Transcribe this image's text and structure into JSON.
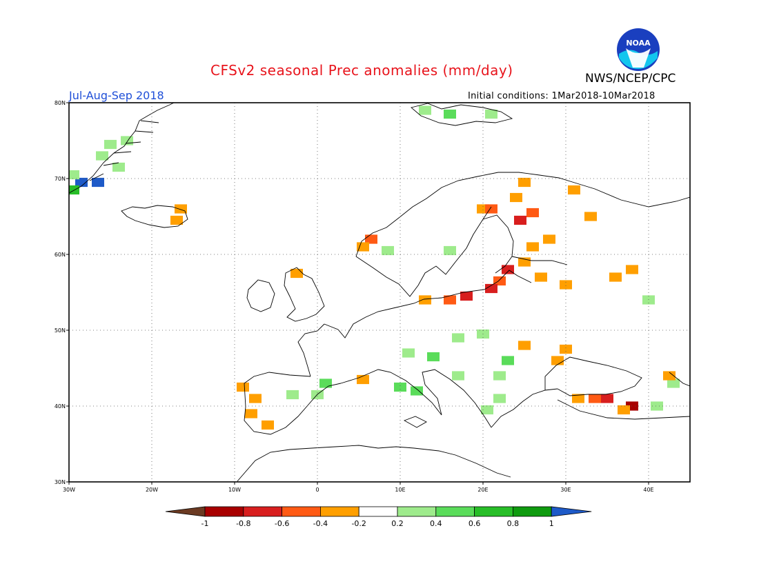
{
  "header": {
    "title": "CFSv2 seasonal Prec anomalies (mm/day)",
    "org": "NWS/NCEP/CPC",
    "period": "Jul-Aug-Sep 2018",
    "initial_conditions": "Initial conditions: 1Mar2018-10Mar2018",
    "logo_text": "NOAA"
  },
  "map": {
    "lon_range": [
      -30,
      45
    ],
    "lat_range": [
      30,
      80
    ],
    "x_ticks": [
      "30W",
      "20W",
      "10W",
      "0",
      "10E",
      "20E",
      "30E",
      "40E"
    ],
    "y_ticks": [
      "30N",
      "40N",
      "50N",
      "60N",
      "70N",
      "80N"
    ],
    "gridlines": "dotted",
    "anomaly_cells_mm_per_day": [
      {
        "lon": -24,
        "lat": 71.5,
        "value": 0.35
      },
      {
        "lon": -26,
        "lat": 73,
        "value": 0.3
      },
      {
        "lon": -25,
        "lat": 74.5,
        "value": 0.3
      },
      {
        "lon": -23,
        "lat": 75,
        "value": 0.3
      },
      {
        "lon": -28.5,
        "lat": 69.5,
        "value": 1.1
      },
      {
        "lon": -26.5,
        "lat": 69.5,
        "value": 1.1
      },
      {
        "lon": -29.5,
        "lat": 68.5,
        "value": 0.7
      },
      {
        "lon": -29.5,
        "lat": 70.5,
        "value": 0.3
      },
      {
        "lon": -16.5,
        "lat": 66,
        "value": -0.3
      },
      {
        "lon": -17,
        "lat": 64.5,
        "value": -0.3
      },
      {
        "lon": -2.5,
        "lat": 57.5,
        "value": -0.3
      },
      {
        "lon": 6.5,
        "lat": 62,
        "value": -0.6
      },
      {
        "lon": 5.5,
        "lat": 61,
        "value": -0.4
      },
      {
        "lon": 8.5,
        "lat": 60.5,
        "value": 0.3
      },
      {
        "lon": 16,
        "lat": 60.5,
        "value": 0.3
      },
      {
        "lon": 20,
        "lat": 66,
        "value": -0.4
      },
      {
        "lon": 21,
        "lat": 66,
        "value": -0.6
      },
      {
        "lon": 25,
        "lat": 69.5,
        "value": -0.3
      },
      {
        "lon": 24,
        "lat": 67.5,
        "value": -0.3
      },
      {
        "lon": 26,
        "lat": 65.5,
        "value": -0.6
      },
      {
        "lon": 24.5,
        "lat": 64.5,
        "value": -0.7
      },
      {
        "lon": 31,
        "lat": 68.5,
        "value": -0.3
      },
      {
        "lon": 33,
        "lat": 65,
        "value": -0.3
      },
      {
        "lon": 26,
        "lat": 61,
        "value": -0.3
      },
      {
        "lon": 28,
        "lat": 62,
        "value": -0.3
      },
      {
        "lon": 23,
        "lat": 58,
        "value": -0.7
      },
      {
        "lon": 22,
        "lat": 56.5,
        "value": -0.6
      },
      {
        "lon": 21,
        "lat": 55.5,
        "value": -0.8
      },
      {
        "lon": 18,
        "lat": 54.5,
        "value": -0.7
      },
      {
        "lon": 16,
        "lat": 54,
        "value": -0.6
      },
      {
        "lon": 13,
        "lat": 54,
        "value": -0.3
      },
      {
        "lon": 25,
        "lat": 59,
        "value": -0.3
      },
      {
        "lon": 27,
        "lat": 57,
        "value": -0.3
      },
      {
        "lon": 30,
        "lat": 56,
        "value": -0.3
      },
      {
        "lon": 36,
        "lat": 57,
        "value": -0.3
      },
      {
        "lon": 38,
        "lat": 58,
        "value": -0.3
      },
      {
        "lon": 40,
        "lat": 54,
        "value": 0.3
      },
      {
        "lon": 20,
        "lat": 49.5,
        "value": 0.3
      },
      {
        "lon": 17,
        "lat": 49,
        "value": 0.3
      },
      {
        "lon": 14,
        "lat": 46.5,
        "value": 0.4
      },
      {
        "lon": 11,
        "lat": 47,
        "value": 0.3
      },
      {
        "lon": 17,
        "lat": 44,
        "value": 0.3
      },
      {
        "lon": 22,
        "lat": 44,
        "value": 0.3
      },
      {
        "lon": 23,
        "lat": 46,
        "value": 0.5
      },
      {
        "lon": 25,
        "lat": 48,
        "value": -0.3
      },
      {
        "lon": 29,
        "lat": 46,
        "value": -0.3
      },
      {
        "lon": 30,
        "lat": 47.5,
        "value": -0.3
      },
      {
        "lon": 12,
        "lat": 42,
        "value": 0.5
      },
      {
        "lon": 10,
        "lat": 42.5,
        "value": 0.4
      },
      {
        "lon": 0,
        "lat": 41.5,
        "value": 0.3
      },
      {
        "lon": -3,
        "lat": 41.5,
        "value": 0.3
      },
      {
        "lon": 1,
        "lat": 43,
        "value": 0.4
      },
      {
        "lon": 5.5,
        "lat": 43.5,
        "value": -0.3
      },
      {
        "lon": -7.5,
        "lat": 41,
        "value": -0.3
      },
      {
        "lon": -8,
        "lat": 39,
        "value": -0.3
      },
      {
        "lon": -6,
        "lat": 37.5,
        "value": -0.3
      },
      {
        "lon": -9,
        "lat": 42.5,
        "value": -0.3
      },
      {
        "lon": 20.5,
        "lat": 39.5,
        "value": 0.3
      },
      {
        "lon": 22,
        "lat": 41,
        "value": 0.3
      },
      {
        "lon": 31.5,
        "lat": 41,
        "value": -0.3
      },
      {
        "lon": 33.5,
        "lat": 41,
        "value": -0.6
      },
      {
        "lon": 35,
        "lat": 41,
        "value": -0.8
      },
      {
        "lon": 38,
        "lat": 40,
        "value": -0.9
      },
      {
        "lon": 37,
        "lat": 39.5,
        "value": -0.3
      },
      {
        "lon": 41,
        "lat": 40,
        "value": 0.3
      },
      {
        "lon": 43,
        "lat": 43,
        "value": 0.3
      },
      {
        "lon": 42.5,
        "lat": 44,
        "value": -0.3
      },
      {
        "lon": 13,
        "lat": 79,
        "value": 0.3
      },
      {
        "lon": 16,
        "lat": 78.5,
        "value": 0.4
      },
      {
        "lon": 21,
        "lat": 78.5,
        "value": 0.3
      }
    ]
  },
  "colorbar": {
    "tick_labels": [
      "-1",
      "-0.8",
      "-0.6",
      "-0.4",
      "-0.2",
      "0.2",
      "0.4",
      "0.6",
      "0.8",
      "1"
    ],
    "colors": {
      "below_min": "#6b3a22",
      "c1": "#a80000",
      "c2": "#d81e1e",
      "c3": "#ff5a14",
      "c4": "#ff9f00",
      "c5": "#ffffff",
      "c6": "#9eeb8c",
      "c7": "#5adc5a",
      "c8": "#28be28",
      "c9": "#0f9b0f",
      "above_max": "#1e5ac8"
    }
  }
}
